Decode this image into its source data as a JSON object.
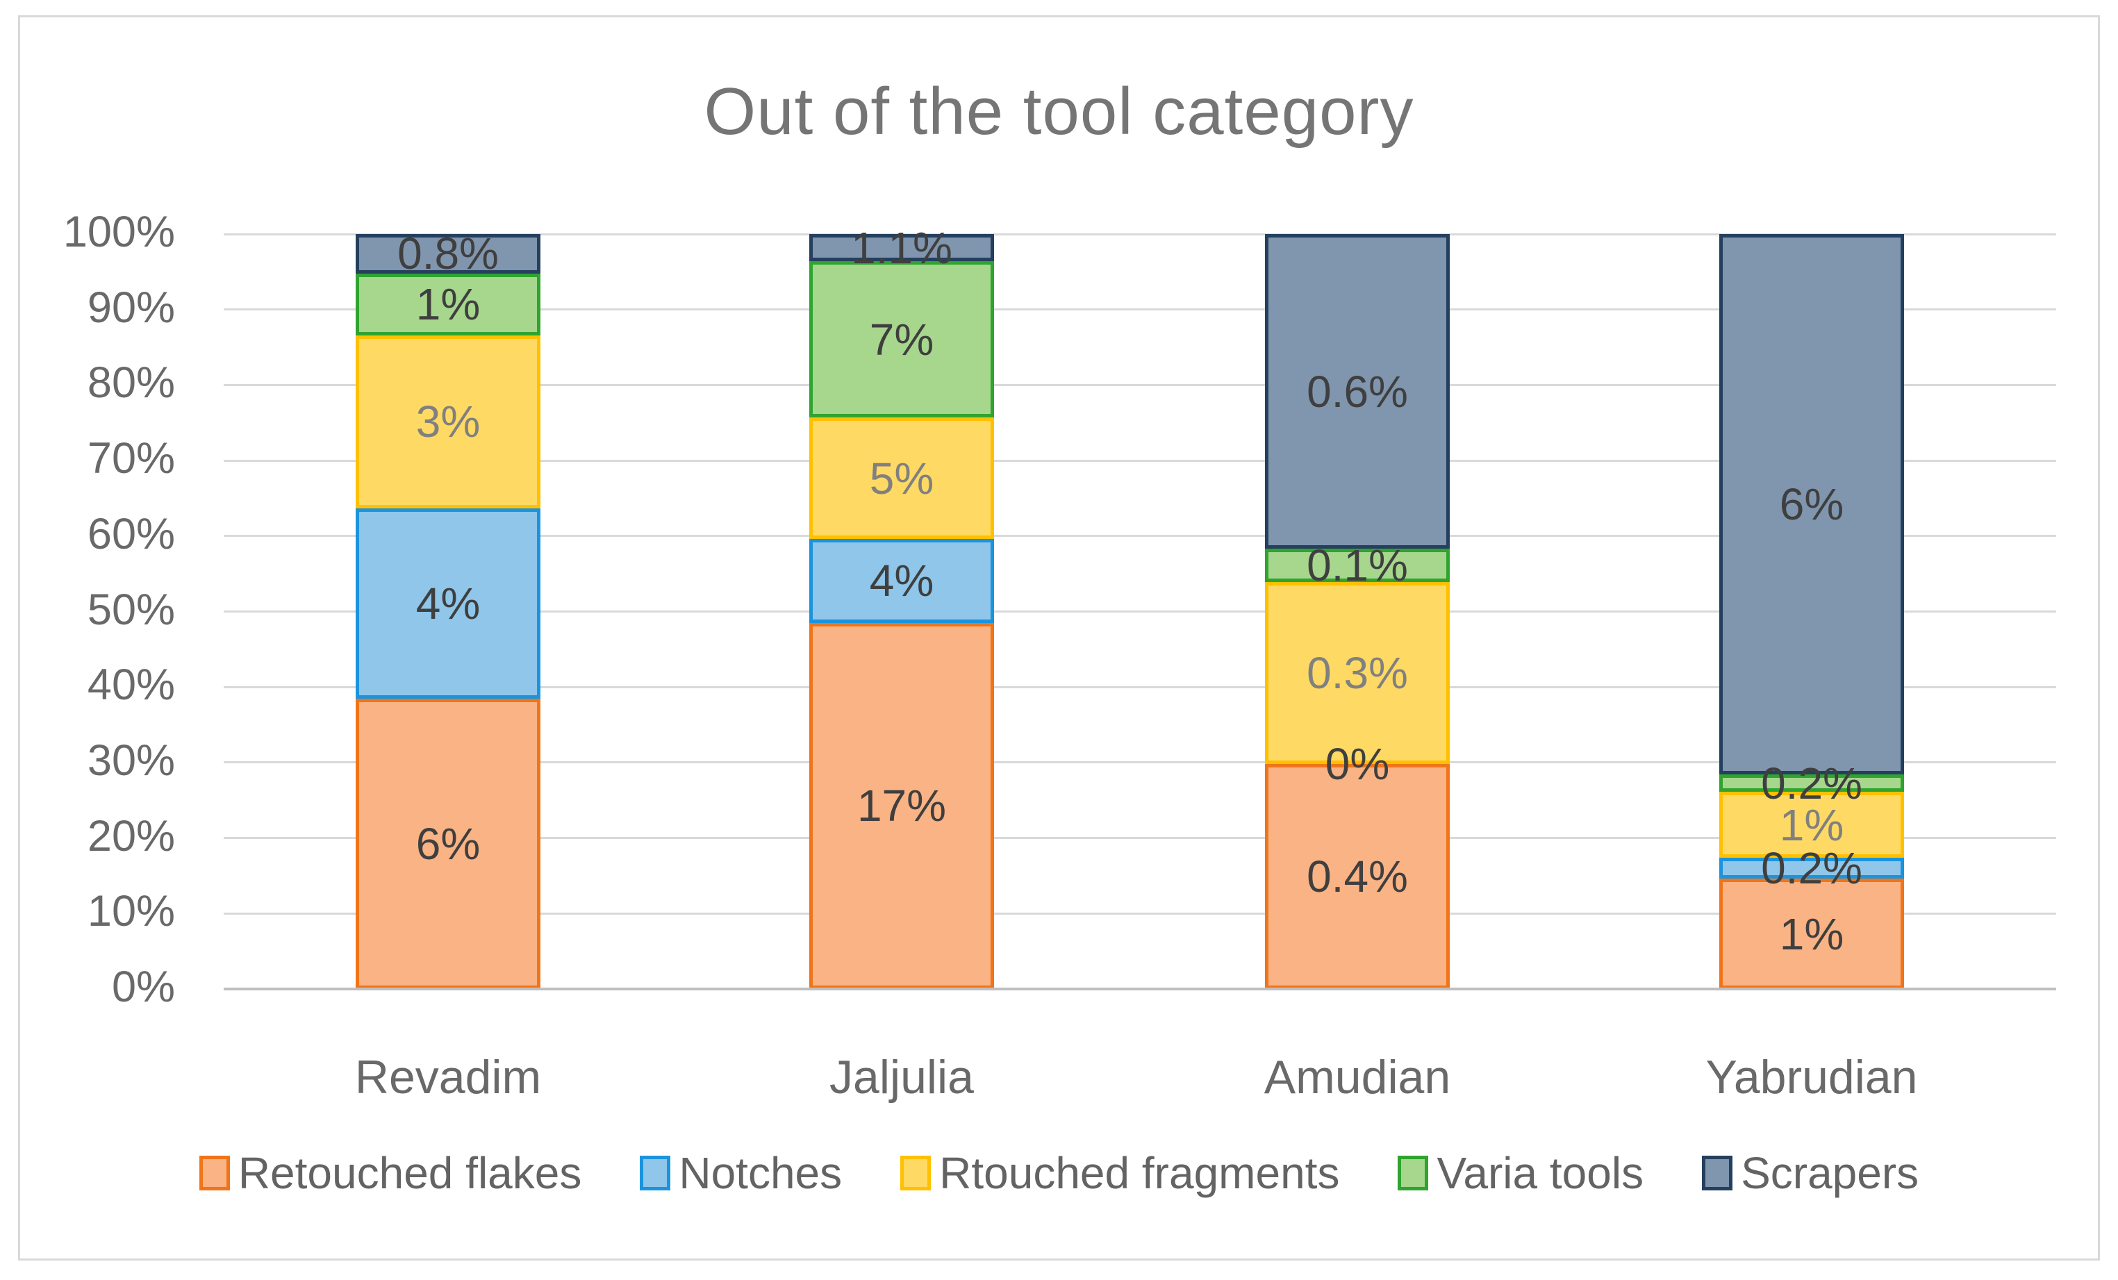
{
  "chart_data": {
    "type": "bar",
    "subtype": "stacked-100",
    "title": "Out of the tool category",
    "categories": [
      "Revadim",
      "Jaljulia",
      "Amudian",
      "Yabrudian"
    ],
    "y_axis": {
      "tick_labels_top_to_bottom": [
        "100%",
        "90%",
        "80%",
        "70%",
        "60%",
        "50%",
        "40%",
        "30%",
        "20%",
        "10%",
        "0%"
      ],
      "min": 0,
      "max": 100,
      "grid": true
    },
    "legend_position": "bottom",
    "series": [
      {
        "name": "Retouched flakes",
        "fill": "#FAB384",
        "border": "#F0751A",
        "label_color": "#3F3F3F",
        "data_labels": [
          "6%",
          "17%",
          "0.4%",
          "1%"
        ],
        "drawn_pct_of_bar": [
          38.5,
          48.5,
          29.8,
          14.6
        ]
      },
      {
        "name": "Notches",
        "fill": "#8FC6EA",
        "border": "#1C94DD",
        "label_color": "#3F3F3F",
        "data_labels": [
          "4%",
          "4%",
          "0%",
          "0.2%"
        ],
        "drawn_pct_of_bar": [
          25.2,
          11.1,
          0,
          2.8
        ]
      },
      {
        "name": "Rtouched fragments",
        "fill": "#FED964",
        "border": "#FFC000",
        "label_color": "#808080",
        "data_labels": [
          "3%",
          "5%",
          "0.3%",
          "1%"
        ],
        "drawn_pct_of_bar": [
          22.9,
          16.1,
          24.1,
          8.7
        ]
      },
      {
        "name": "Varia tools",
        "fill": "#A6D78D",
        "border": "#2FA42F",
        "label_color": "#3F3F3F",
        "data_labels": [
          "1%",
          "7%",
          "0.1%",
          "0.2%"
        ],
        "drawn_pct_of_bar": [
          8.2,
          20.7,
          4.4,
          2.3
        ]
      },
      {
        "name": "Scrapers",
        "fill": "#8095AE",
        "border": "#24405E",
        "label_color": "#3F3F3F",
        "data_labels": [
          "0.8%",
          "1.1%",
          "0.6%",
          "6%"
        ],
        "drawn_pct_of_bar": [
          5.2,
          3.6,
          41.7,
          71.6
        ]
      }
    ],
    "colors": {
      "gridline": "#D9D9D9",
      "axis_line": "#BFBFBF",
      "title_text": "#757575",
      "axis_text": "#696969",
      "legend_text": "#636363",
      "frame_border": "#D9D9D9",
      "background": "#FFFFFF"
    }
  }
}
